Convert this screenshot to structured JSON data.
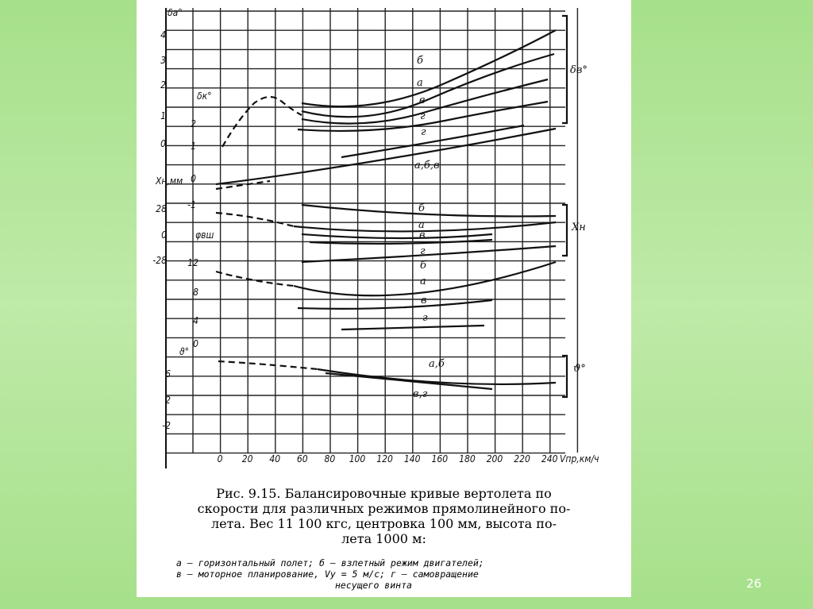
{
  "figure": {
    "x_ticks": [
      "0",
      "20",
      "40",
      "60",
      "80",
      "100",
      "120",
      "140",
      "160",
      "180",
      "200",
      "220",
      "240"
    ],
    "x_axis_label": "Vпр,км/ч",
    "panels": [
      {
        "label": "δa°",
        "ticks": [
          "4",
          "3",
          "2",
          "1",
          "0"
        ]
      },
      {
        "label": "δк°",
        "ticks": [
          "2",
          "1",
          "0",
          "-1"
        ]
      },
      {
        "label": "Xн,мм",
        "ticks": [
          "28",
          "0",
          "-28"
        ]
      },
      {
        "label": "φвш",
        "ticks": [
          "12",
          "8",
          "4",
          "0"
        ]
      },
      {
        "label": "ϑ°",
        "ticks": [
          "6",
          "2",
          "-2"
        ]
      }
    ],
    "curve_labels": [
      "б",
      "а",
      "в",
      "г",
      "г",
      "а,б,в",
      "б",
      "а",
      "в",
      "г",
      "б",
      "а",
      "в",
      "г",
      "а,б",
      "в,г"
    ],
    "right_labels": [
      "δв°",
      "Xн",
      "ϑ°"
    ]
  },
  "caption": {
    "lines": [
      "Рис. 9.15. Балансировочные кривые вертолета по",
      "скорости для различных режимов прямолинейного по-",
      "лета. Вес 11 100 кгс, центровка 100 мм, высота по-",
      "лета 1000 м:"
    ],
    "legend": [
      "а — горизонтальный полет; б — взлетный режим двигателей;",
      "в — моторное планирование, Vy = 5 м/с; г — самовращение",
      "несущего винта"
    ]
  },
  "page_number": "26"
}
